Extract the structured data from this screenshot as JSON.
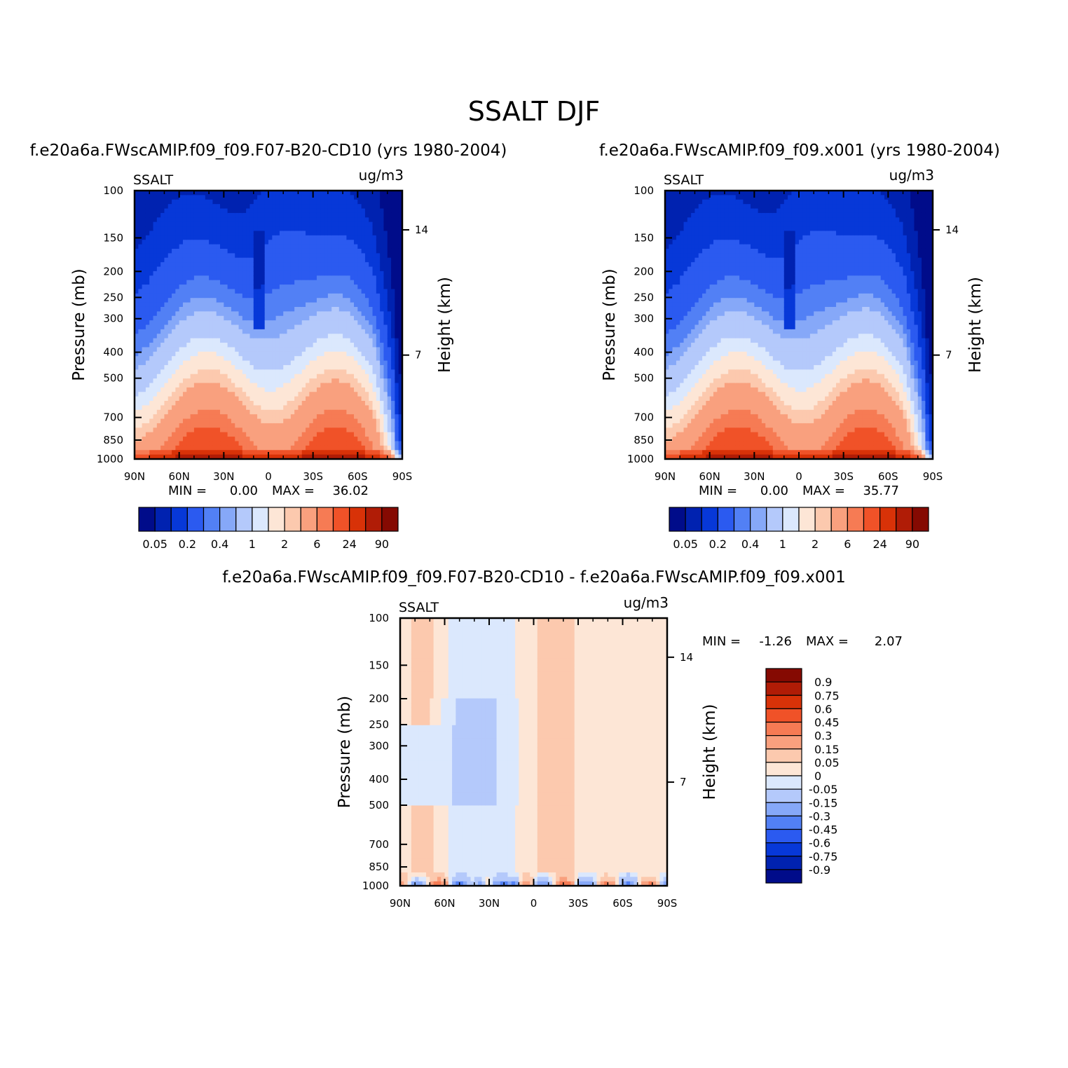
{
  "title": "SSALT DJF",
  "colors": {
    "levels_main": [
      "#000c8a",
      "#0022b0",
      "#0738d8",
      "#2b5af0",
      "#5280f5",
      "#86a8f8",
      "#b4c9fb",
      "#dbe8fd",
      "#fde6d6",
      "#fcc9ae",
      "#f9a07e",
      "#f67b54",
      "#f05228",
      "#d83208",
      "#b01c06",
      "#850a02"
    ],
    "levels_diff": [
      "#000c8a",
      "#0022b0",
      "#0738d8",
      "#2b5af0",
      "#5280f5",
      "#86a8f8",
      "#b4c9fb",
      "#dbe8fd",
      "#fde6d6",
      "#fcc9ae",
      "#f9a07e",
      "#f67b54",
      "#f05228",
      "#d83208",
      "#b01c06",
      "#850a02"
    ]
  },
  "chart_data": [
    {
      "id": "panel-cd10",
      "type": "heatmap",
      "title": "f.e20a6a.FWscAMIP.f09_f09.F07-B20-CD10 (yrs 1980-2004)",
      "variable_label": "SSALT",
      "units": "ug/m3",
      "ylabel": "Pressure (mb)",
      "ylabel_right": "Height (km)",
      "xticks": [
        "90N",
        "60N",
        "30N",
        "0",
        "30S",
        "60S",
        "90S"
      ],
      "yticks": [
        100,
        150,
        200,
        250,
        300,
        400,
        500,
        700,
        850,
        1000
      ],
      "yticks_right": [
        "14",
        "7"
      ],
      "xlim": [
        90,
        -90
      ],
      "ylim": [
        1000,
        100
      ],
      "min_label": "MIN =",
      "min_value": "0.00",
      "max_label": "MAX =",
      "max_value": "36.02",
      "colorbar": {
        "orientation": "horizontal",
        "labels": [
          "0.05",
          "0.2",
          "0.4",
          "1",
          "2",
          "6",
          "24",
          "90"
        ]
      }
    },
    {
      "id": "panel-x001",
      "type": "heatmap",
      "title": "f.e20a6a.FWscAMIP.f09_f09.x001 (yrs 1980-2004)",
      "variable_label": "SSALT",
      "units": "ug/m3",
      "ylabel": "Pressure (mb)",
      "ylabel_right": "Height (km)",
      "xticks": [
        "90N",
        "60N",
        "30N",
        "0",
        "30S",
        "60S",
        "90S"
      ],
      "yticks": [
        100,
        150,
        200,
        250,
        300,
        400,
        500,
        700,
        850,
        1000
      ],
      "yticks_right": [
        "14",
        "7"
      ],
      "xlim": [
        90,
        -90
      ],
      "ylim": [
        1000,
        100
      ],
      "min_label": "MIN =",
      "min_value": "0.00",
      "max_label": "MAX =",
      "max_value": "35.77",
      "colorbar": {
        "orientation": "horizontal",
        "labels": [
          "0.05",
          "0.2",
          "0.4",
          "1",
          "2",
          "6",
          "24",
          "90"
        ]
      }
    },
    {
      "id": "panel-diff",
      "type": "heatmap",
      "title": "f.e20a6a.FWscAMIP.f09_f09.F07-B20-CD10 - f.e20a6a.FWscAMIP.f09_f09.x001",
      "variable_label": "SSALT",
      "units": "ug/m3",
      "ylabel": "Pressure (mb)",
      "ylabel_right": "Height (km)",
      "xticks": [
        "90N",
        "60N",
        "30N",
        "0",
        "30S",
        "60S",
        "90S"
      ],
      "yticks": [
        100,
        150,
        200,
        250,
        300,
        400,
        500,
        700,
        850,
        1000
      ],
      "yticks_right": [
        "14",
        "7"
      ],
      "xlim": [
        90,
        -90
      ],
      "ylim": [
        1000,
        100
      ],
      "min_label": "MIN =",
      "min_value": "-1.26",
      "max_label": "MAX =",
      "max_value": "2.07",
      "colorbar": {
        "orientation": "vertical",
        "labels": [
          "0.9",
          "0.75",
          "0.6",
          "0.45",
          "0.3",
          "0.15",
          "0.05",
          "0",
          "-0.05",
          "-0.15",
          "-0.3",
          "-0.45",
          "-0.6",
          "-0.75",
          "-0.9"
        ]
      }
    }
  ]
}
